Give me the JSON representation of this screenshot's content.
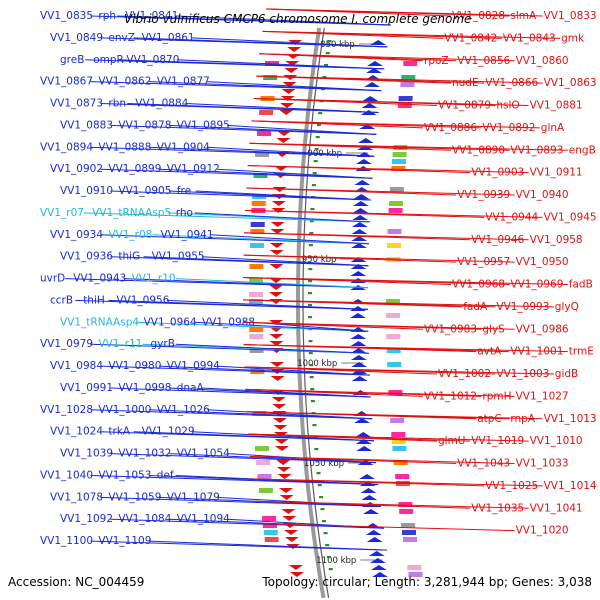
{
  "title": "Vibrio vulnificus CMCP6 chromosome I, complete genome",
  "footer": {
    "accession": "Accession: NC_004459",
    "summary": "Topology: circular; Length: 3,281,944 bp; Genes: 3,038"
  },
  "scale_marks": [
    "850 kbp",
    "900 kbp",
    "950 kbp",
    "1000 kbp",
    "1050 kbp",
    "1100 kbp"
  ],
  "colors": {
    "forward_strand": "#1a2bd6",
    "reverse_strand": "#e01010",
    "rna_genes": "#23b7e0",
    "backbone": "#888888",
    "tick_marks": "#2f8a2f"
  },
  "left_labels": [
    {
      "text": "VV1_0835",
      "kind": "gene"
    },
    {
      "text": "rph",
      "kind": "gene"
    },
    {
      "text": "VV1_0841",
      "kind": "gene"
    },
    {
      "text": "VV1_0849",
      "kind": "gene"
    },
    {
      "text": "envZ",
      "kind": "gene"
    },
    {
      "text": "VV1_0861",
      "kind": "gene"
    },
    {
      "text": "greB",
      "kind": "gene"
    },
    {
      "text": "ompR",
      "kind": "gene"
    },
    {
      "text": "VV1_0870",
      "kind": "gene"
    },
    {
      "text": "VV1_0867",
      "kind": "gene"
    },
    {
      "text": "VV1_0862",
      "kind": "gene"
    },
    {
      "text": "VV1_0877",
      "kind": "gene"
    },
    {
      "text": "VV1_0873",
      "kind": "gene"
    },
    {
      "text": "rbn",
      "kind": "gene"
    },
    {
      "text": "VV1_0884",
      "kind": "gene"
    },
    {
      "text": "VV1_0883",
      "kind": "gene"
    },
    {
      "text": "VV1_0878",
      "kind": "gene"
    },
    {
      "text": "VV1_0895",
      "kind": "gene"
    },
    {
      "text": "VV1_0894",
      "kind": "gene"
    },
    {
      "text": "VV1_0888",
      "kind": "gene"
    },
    {
      "text": "VV1_0904",
      "kind": "gene"
    },
    {
      "text": "VV1_0902",
      "kind": "gene"
    },
    {
      "text": "VV1_0899",
      "kind": "gene"
    },
    {
      "text": "VV1_0912",
      "kind": "gene"
    },
    {
      "text": "VV1_0910",
      "kind": "gene"
    },
    {
      "text": "VV1_0905",
      "kind": "gene"
    },
    {
      "text": "fre",
      "kind": "gene"
    },
    {
      "text": "VV1_r07",
      "kind": "rna"
    },
    {
      "text": "VV1_tRNAAsp5",
      "kind": "rna"
    },
    {
      "text": "rho",
      "kind": "gene"
    },
    {
      "text": "VV1_0934",
      "kind": "gene"
    },
    {
      "text": "VV1_r08",
      "kind": "rna"
    },
    {
      "text": "VV1_0941",
      "kind": "gene"
    },
    {
      "text": "VV1_0936",
      "kind": "gene"
    },
    {
      "text": "thiG",
      "kind": "gene"
    },
    {
      "text": "VV1_0955",
      "kind": "gene"
    },
    {
      "text": "uvrD",
      "kind": "gene"
    },
    {
      "text": "VV1_0943",
      "kind": "gene"
    },
    {
      "text": "VV1_r10",
      "kind": "rna"
    },
    {
      "text": "ccrB",
      "kind": "gene"
    },
    {
      "text": "thiH",
      "kind": "gene"
    },
    {
      "text": "VV1_0956",
      "kind": "gene"
    },
    {
      "text": "VV1_tRNAAsp4",
      "kind": "rna"
    },
    {
      "text": "VV1_0964",
      "kind": "gene"
    },
    {
      "text": "VV1_0988",
      "kind": "gene"
    },
    {
      "text": "VV1_0979",
      "kind": "gene"
    },
    {
      "text": "VV1_r11",
      "kind": "rna"
    },
    {
      "text": "gyrB",
      "kind": "gene"
    },
    {
      "text": "VV1_0984",
      "kind": "gene"
    },
    {
      "text": "VV1_0980",
      "kind": "gene"
    },
    {
      "text": "VV1_0994",
      "kind": "gene"
    },
    {
      "text": "VV1_0991",
      "kind": "gene"
    },
    {
      "text": "VV1_0998",
      "kind": "gene"
    },
    {
      "text": "dnaA",
      "kind": "gene"
    },
    {
      "text": "VV1_1028",
      "kind": "gene"
    },
    {
      "text": "VV1_1000",
      "kind": "gene"
    },
    {
      "text": "VV1_1026",
      "kind": "gene"
    },
    {
      "text": "VV1_1024",
      "kind": "gene"
    },
    {
      "text": "trkA",
      "kind": "gene"
    },
    {
      "text": "VV1_1029",
      "kind": "gene"
    },
    {
      "text": "VV1_1039",
      "kind": "gene"
    },
    {
      "text": "VV1_1032",
      "kind": "gene"
    },
    {
      "text": "VV1_1054",
      "kind": "gene"
    },
    {
      "text": "VV1_1040",
      "kind": "gene"
    },
    {
      "text": "VV1_1053",
      "kind": "gene"
    },
    {
      "text": "def",
      "kind": "gene"
    },
    {
      "text": "VV1_1078",
      "kind": "gene"
    },
    {
      "text": "VV1_1059",
      "kind": "gene"
    },
    {
      "text": "VV1_1079",
      "kind": "gene"
    },
    {
      "text": "VV1_1092",
      "kind": "gene"
    },
    {
      "text": "VV1_1084",
      "kind": "gene"
    },
    {
      "text": "VV1_1094",
      "kind": "gene"
    },
    {
      "text": "VV1_1100",
      "kind": "gene"
    },
    {
      "text": "VV1_1109",
      "kind": "gene"
    }
  ],
  "right_labels": [
    "VV1_0828",
    "slmA",
    "VV1_0833",
    "VV1_0842",
    "VV1_0843",
    "gmk",
    "rpoZ",
    "VV1_0856",
    "VV1_0860",
    "nudE",
    "VV1_0866",
    "VV1_0863",
    "VV1_0879",
    "hslO",
    "VV1_0881",
    "VV1_0886",
    "VV1_0892",
    "glnA",
    "VV1_0890",
    "VV1_0893",
    "engB",
    "VV1_0903",
    "VV1_0911",
    "VV1_0939",
    "VV1_0940",
    "VV1_0944",
    "VV1_0945",
    "VV1_0946",
    "VV1_0958",
    "VV1_0957",
    "VV1_0950",
    "VV1_0968",
    "VV1_0969",
    "fadB",
    "fadA",
    "VV1_0993",
    "glyQ",
    "VV1_0983",
    "glyS",
    "VV1_0986",
    "avtA",
    "VV1_1001",
    "trmE",
    "VV1_1002",
    "VV1_1003",
    "gidB",
    "VV1_1012",
    "rpmH",
    "VV1_1027",
    "atpC",
    "rnpA",
    "VV1_1013",
    "glmU",
    "VV1_1019",
    "VV1_1010",
    "VV1_1043",
    "VV1_1033",
    "VV1_1025",
    "VV1_1014",
    "VV1_1035",
    "VV1_1041",
    "VV1_1020"
  ]
}
